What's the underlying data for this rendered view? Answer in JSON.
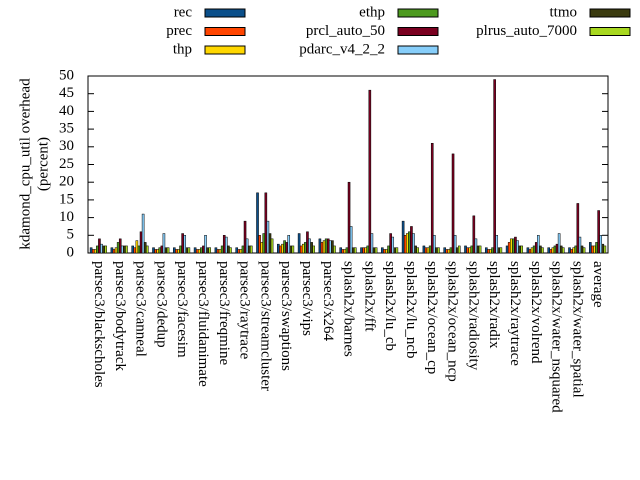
{
  "chart_data": {
    "type": "bar",
    "ylabel": [
      "kdamond_cpu_util overhead",
      "(percent)"
    ],
    "categories": [
      "parsec3/blackscholes",
      "parsec3/bodytrack",
      "parsec3/canneal",
      "parsec3/dedup",
      "parsec3/facesim",
      "parsec3/fluidanimate",
      "parsec3/freqmine",
      "parsec3/raytrace",
      "parsec3/streamcluster",
      "parsec3/swaptions",
      "parsec3/vips",
      "parsec3/x264",
      "splash2x/barnes",
      "splash2x/fft",
      "splash2x/lu_cb",
      "splash2x/lu_ncb",
      "splash2x/ocean_cp",
      "splash2x/ocean_ncp",
      "splash2x/radiosity",
      "splash2x/radix",
      "splash2x/raytrace",
      "splash2x/volrend",
      "splash2x/water_nsquared",
      "splash2x/water_spatial",
      "average"
    ],
    "series": [
      {
        "name": "rec",
        "color": "#0b4f8a",
        "values": [
          1.5,
          1.5,
          2,
          1.5,
          1.5,
          1.5,
          1.5,
          1.5,
          17,
          2.5,
          5.5,
          4,
          1.5,
          1.5,
          1.5,
          9,
          2,
          1.5,
          2,
          1.5,
          2,
          1.5,
          1.5,
          1.5,
          3
        ]
      },
      {
        "name": "prec",
        "color": "#ff4500",
        "values": [
          1,
          1,
          1.5,
          1,
          1,
          1,
          1,
          1,
          5,
          2,
          2,
          3,
          1,
          1.5,
          1,
          5,
          1.5,
          1,
          1.5,
          1,
          3,
          1,
          1,
          1,
          2
        ]
      },
      {
        "name": "thp",
        "color": "#ffd700",
        "values": [
          1,
          1.5,
          3.5,
          1,
          1,
          1,
          1,
          1,
          3,
          2.5,
          2.5,
          3.5,
          1,
          1.5,
          1,
          5.5,
          1.5,
          1,
          1.5,
          1,
          4,
          1.5,
          1.5,
          1.5,
          2
        ]
      },
      {
        "name": "ethp",
        "color": "#4d9a1f",
        "values": [
          2,
          3,
          2,
          1.5,
          2,
          1.5,
          2,
          2,
          5.5,
          3.5,
          3,
          4,
          1.5,
          2,
          2,
          6,
          2,
          1.5,
          2,
          1.5,
          4,
          2,
          2,
          2,
          3
        ]
      },
      {
        "name": "prcl_auto_50",
        "color": "#7a0020",
        "values": [
          4,
          4,
          6,
          2,
          5.5,
          2,
          5,
          9,
          17,
          3,
          6,
          4,
          20,
          46,
          5.5,
          7.5,
          31,
          28,
          10.5,
          49,
          4.5,
          3,
          2.5,
          14,
          12
        ]
      },
      {
        "name": "pdarc_v4_2_2",
        "color": "#87cefa",
        "values": [
          2.5,
          2,
          11,
          5.5,
          5,
          5,
          4.5,
          4,
          9,
          5,
          4,
          3.5,
          7.5,
          5.5,
          4.5,
          5.5,
          5,
          5,
          4,
          5,
          3.5,
          5,
          5.5,
          4.5,
          5
        ]
      },
      {
        "name": "ttmo",
        "color": "#3b3b0f",
        "values": [
          2,
          2,
          3,
          1.5,
          1.5,
          1.5,
          2,
          2,
          5.5,
          2,
          3,
          3.5,
          1.5,
          1.5,
          1.5,
          2,
          1.5,
          1.5,
          2,
          1.5,
          2,
          2,
          2,
          2,
          2.5
        ]
      },
      {
        "name": "plrus_auto_7000",
        "color": "#a8d820",
        "values": [
          2,
          2,
          2,
          1.5,
          1.5,
          1.5,
          1.5,
          2,
          4,
          2,
          2,
          2,
          1.5,
          1.5,
          1.5,
          1.5,
          1.5,
          2,
          2,
          1.5,
          2,
          1.5,
          1.5,
          1.5,
          2
        ]
      }
    ],
    "ylim": [
      0,
      50
    ],
    "yticks": [
      0,
      5,
      10,
      15,
      20,
      25,
      30,
      35,
      40,
      45,
      50
    ]
  }
}
